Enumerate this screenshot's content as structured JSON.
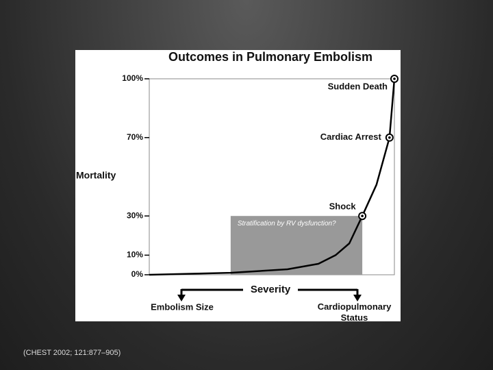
{
  "chart_data": {
    "type": "line",
    "title": "Outcomes in Pulmonary Embolism",
    "ylabel": "Mortality",
    "xlabel": "Severity",
    "x_arrow_labels": [
      "Embolism Size",
      "Cardiopulmonary Status"
    ],
    "source": "(CHEST 2002; 121:877–905)",
    "x": [
      0,
      33.2,
      56.4,
      69,
      76,
      81.6,
      86.9,
      92.7,
      98,
      100
    ],
    "values": [
      0,
      1,
      2.8,
      5.6,
      10,
      16,
      30,
      46,
      70,
      100
    ],
    "color": "#000000",
    "xlim": [
      0,
      100
    ],
    "ylim": [
      0,
      100
    ],
    "yticks": [
      {
        "value": 0,
        "label": "0%"
      },
      {
        "value": 10,
        "label": "10%"
      },
      {
        "value": 30,
        "label": "30%"
      },
      {
        "value": 70,
        "label": "70%"
      },
      {
        "value": 100,
        "label": "100%"
      }
    ],
    "points": [
      {
        "label": "Shock",
        "x": 86.9,
        "y": 30
      },
      {
        "label": "Cardiac Arrest",
        "x": 98,
        "y": 70
      },
      {
        "label": "Sudden Death",
        "x": 100,
        "y": 100
      }
    ],
    "highlight": {
      "label": "Stratification by RV dysfunction?",
      "x": [
        33.2,
        86.9
      ],
      "y": [
        0,
        30
      ],
      "color": "#999999"
    }
  }
}
